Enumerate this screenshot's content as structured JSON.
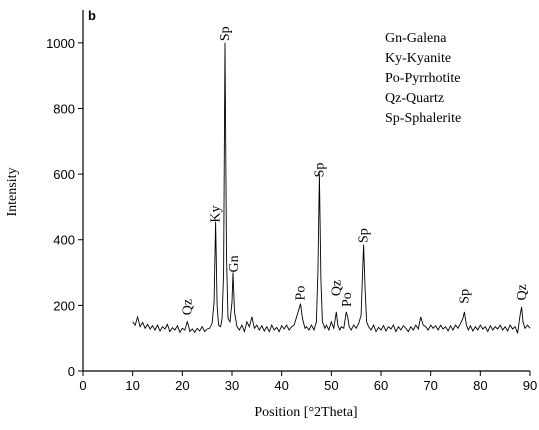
{
  "chart_data": {
    "type": "line",
    "panel_label": "b",
    "xlabel": "Position [°2Theta]",
    "ylabel": "Intensity",
    "xlim": [
      0,
      90
    ],
    "ylim": [
      0,
      1100
    ],
    "xticks": [
      0,
      10,
      20,
      30,
      40,
      50,
      60,
      70,
      80,
      90
    ],
    "yticks": [
      0,
      200,
      400,
      600,
      800,
      1000
    ],
    "color": "#000000",
    "x": [
      10,
      10.5,
      11,
      11.5,
      12,
      12.5,
      13,
      13.5,
      14,
      14.5,
      15,
      15.5,
      16,
      16.5,
      17,
      17.5,
      18,
      18.5,
      19,
      19.5,
      20,
      20.5,
      21,
      21.3,
      21.5,
      22,
      22.5,
      23,
      23.5,
      24,
      24.5,
      25,
      25.5,
      26,
      26.4,
      26.7,
      27,
      27.3,
      27.7,
      28,
      28.3,
      28.6,
      28.9,
      29.2,
      29.6,
      30,
      30.2,
      30.5,
      31,
      31.5,
      32,
      32.5,
      33,
      33.5,
      34,
      34.5,
      35,
      35.5,
      36,
      36.5,
      37,
      37.5,
      38,
      38.5,
      39,
      39.5,
      40,
      40.5,
      41,
      41.5,
      42,
      42.5,
      43,
      43.5,
      43.8,
      44.2,
      44.7,
      45,
      45.5,
      46,
      46.5,
      47,
      47.3,
      47.6,
      47.9,
      48.2,
      48.7,
      49,
      49.5,
      50,
      50.5,
      51,
      51.3,
      51.7,
      52,
      52.5,
      53,
      53.3,
      53.6,
      54,
      54.5,
      55,
      55.5,
      56,
      56.3,
      56.5,
      56.8,
      57.1,
      57.5,
      58,
      58.5,
      59,
      59.5,
      60,
      60.5,
      61,
      61.5,
      62,
      62.5,
      63,
      63.5,
      64,
      64.5,
      65,
      65.5,
      66,
      66.5,
      67,
      67.5,
      68,
      68.5,
      69,
      69.5,
      70,
      70.5,
      71,
      71.5,
      72,
      72.5,
      73,
      73.5,
      74,
      74.5,
      75,
      75.5,
      76,
      76.5,
      76.8,
      77.2,
      77.6,
      78,
      78.5,
      79,
      79.5,
      80,
      80.5,
      81,
      81.5,
      82,
      82.5,
      83,
      83.5,
      84,
      84.5,
      85,
      85.5,
      86,
      86.5,
      87,
      87.5,
      88,
      88.3,
      88.6,
      89,
      89.5,
      90
    ],
    "values": [
      150,
      140,
      165,
      135,
      148,
      130,
      142,
      128,
      138,
      125,
      140,
      122,
      135,
      128,
      142,
      120,
      132,
      125,
      138,
      118,
      130,
      125,
      150,
      135,
      120,
      128,
      118,
      130,
      122,
      135,
      120,
      128,
      130,
      145,
      210,
      455,
      200,
      140,
      135,
      160,
      300,
      1000,
      350,
      160,
      150,
      210,
      300,
      180,
      135,
      125,
      140,
      120,
      150,
      135,
      165,
      130,
      140,
      125,
      138,
      122,
      135,
      120,
      140,
      125,
      133,
      120,
      138,
      128,
      140,
      125,
      135,
      140,
      165,
      190,
      205,
      160,
      130,
      135,
      125,
      140,
      125,
      150,
      300,
      600,
      280,
      150,
      130,
      140,
      125,
      150,
      130,
      180,
      140,
      125,
      135,
      130,
      180,
      165,
      135,
      125,
      140,
      130,
      145,
      170,
      300,
      385,
      250,
      150,
      135,
      125,
      140,
      120,
      133,
      125,
      138,
      122,
      135,
      128,
      140,
      120,
      135,
      125,
      138,
      130,
      120,
      135,
      125,
      140,
      128,
      165,
      140,
      135,
      125,
      140,
      130,
      138,
      125,
      140,
      128,
      135,
      122,
      138,
      125,
      140,
      130,
      145,
      160,
      180,
      140,
      125,
      138,
      122,
      135,
      125,
      140,
      128,
      135,
      120,
      138,
      125,
      135,
      128,
      140,
      125,
      135,
      122,
      140,
      128,
      135,
      115,
      170,
      195,
      150,
      130,
      140,
      130
    ],
    "annotations": [
      {
        "text": "Qz",
        "x": 21,
        "y": 170
      },
      {
        "text": "Ky",
        "x": 26.7,
        "y": 452
      },
      {
        "text": "Sp",
        "x": 28.6,
        "y": 1005
      },
      {
        "text": "Gn",
        "x": 30.4,
        "y": 300
      },
      {
        "text": "Po",
        "x": 43.8,
        "y": 215
      },
      {
        "text": "Sp",
        "x": 47.6,
        "y": 590
      },
      {
        "text": "Qz",
        "x": 51,
        "y": 228
      },
      {
        "text": "Po",
        "x": 53.2,
        "y": 195
      },
      {
        "text": "Sp",
        "x": 56.5,
        "y": 390
      },
      {
        "text": "Sp",
        "x": 76.8,
        "y": 205
      },
      {
        "text": "Qz",
        "x": 88.4,
        "y": 215
      }
    ],
    "notes": [
      "Gn-Galena",
      "Ky-Kyanite",
      "Po-Pyrrhotite",
      "Qz-Quartz",
      "Sp-Sphalerite"
    ]
  }
}
